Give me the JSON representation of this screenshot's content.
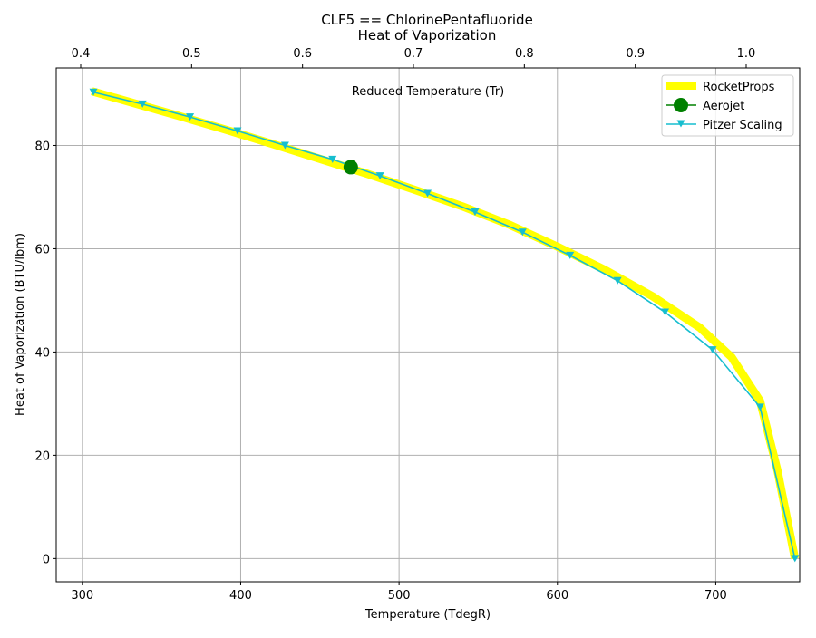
{
  "chart_data": {
    "type": "line",
    "title": "CLF5 == ChlorinePentafluoride",
    "subtitle": "Heat of Vaporization",
    "xlabel": "Temperature (TdegR)",
    "ylabel": "Heat of Vaporization (BTU/lbm)",
    "x2label": "Reduced Temperature (Tr)",
    "xlim": [
      283.5,
      753
    ],
    "ylim": [
      -4.5,
      95
    ],
    "x2lim": [
      0.4,
      1.0
    ],
    "xticks": [
      300,
      400,
      500,
      600,
      700
    ],
    "yticks": [
      0,
      20,
      40,
      60,
      80
    ],
    "x2ticks": [
      "0.4",
      "0.5",
      "0.6",
      "0.7",
      "0.8",
      "0.9",
      "1.0"
    ],
    "x2tick_values": [
      0.4,
      0.5,
      0.6,
      0.7,
      0.8,
      0.9,
      1.0
    ],
    "grid": true,
    "legend_position": "upper-right",
    "series": [
      {
        "name": "RocketProps",
        "color": "#ffff00",
        "style": "thick-line",
        "x": [
          306,
          330,
          360,
          390,
          420,
          450,
          480,
          510,
          540,
          570,
          600,
          630,
          660,
          690,
          710,
          728,
          739,
          750
        ],
        "y": [
          90.5,
          88.4,
          85.8,
          83.1,
          80.3,
          77.4,
          74.5,
          71.4,
          68.2,
          64.6,
          60.4,
          55.9,
          50.8,
          44.7,
          39.0,
          30.5,
          17.0,
          0
        ]
      },
      {
        "name": "Aerojet",
        "color": "#008000",
        "style": "marker-circle",
        "x": [
          469.5
        ],
        "y": [
          75.8
        ]
      },
      {
        "name": "Pitzer Scaling",
        "color": "#17becf",
        "style": "line-triangle",
        "x": [
          307,
          338,
          368,
          398,
          428,
          458,
          488,
          518,
          548,
          578,
          608,
          638,
          668,
          698,
          728,
          750
        ],
        "y": [
          90.3,
          88.0,
          85.5,
          82.8,
          80.0,
          77.3,
          74.1,
          70.7,
          67.1,
          63.2,
          58.7,
          53.8,
          47.7,
          40.4,
          29.3,
          0
        ]
      }
    ]
  }
}
